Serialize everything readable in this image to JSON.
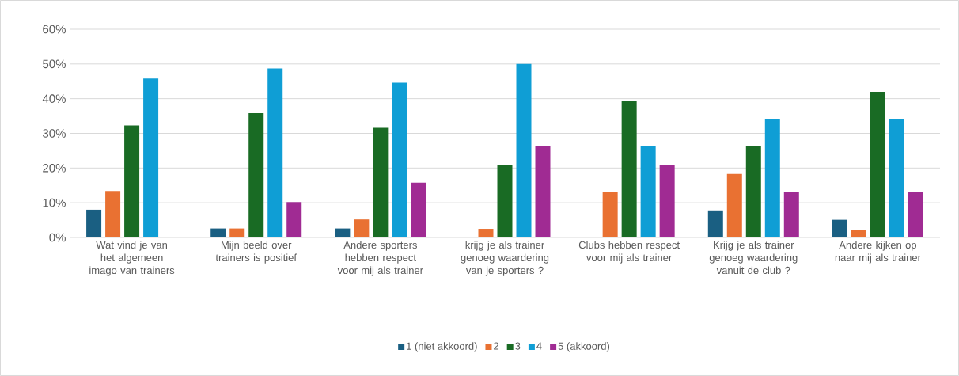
{
  "chart_data": {
    "type": "bar",
    "categories": [
      "Wat vind je van het algemeen imago van trainers",
      "Mijn beeld over trainers is positief",
      "Andere sporters hebben respect voor mij als trainer",
      "krijg je als trainer genoeg waardering van je sporters ?",
      "Clubs hebben respect voor mij als trainer",
      "Krijg je als trainer genoeg waardering vanuit de club ?",
      "Andere kijken op naar mij als trainer"
    ],
    "series": [
      {
        "name": "1 (niet akkoord)",
        "color": "#1a5f82",
        "values": [
          8.0,
          2.6,
          2.6,
          0,
          0,
          7.8,
          5.1
        ]
      },
      {
        "name": "2",
        "color": "#e97132",
        "values": [
          13.4,
          2.6,
          5.2,
          2.5,
          13.1,
          18.3,
          2.2
        ]
      },
      {
        "name": "3",
        "color": "#196b24",
        "values": [
          32.3,
          35.8,
          31.6,
          20.9,
          39.4,
          26.3,
          42.0
        ]
      },
      {
        "name": "4",
        "color": "#0f9ed5",
        "values": [
          45.8,
          48.7,
          44.6,
          50.0,
          26.3,
          34.2,
          34.2
        ]
      },
      {
        "name": "5 (akkoord)",
        "color": "#a02b93",
        "values": [
          0,
          10.2,
          15.8,
          26.3,
          20.9,
          13.1,
          13.1
        ]
      }
    ],
    "ylim": [
      0,
      60
    ],
    "yticks": [
      {
        "value": 0,
        "label": "0%"
      },
      {
        "value": 10,
        "label": "10%"
      },
      {
        "value": 20,
        "label": "20%"
      },
      {
        "value": 30,
        "label": "30%"
      },
      {
        "value": 40,
        "label": "40%"
      },
      {
        "value": 50,
        "label": "50%"
      },
      {
        "value": 60,
        "label": "60%"
      }
    ],
    "grid": "y",
    "legend": "bottom"
  }
}
